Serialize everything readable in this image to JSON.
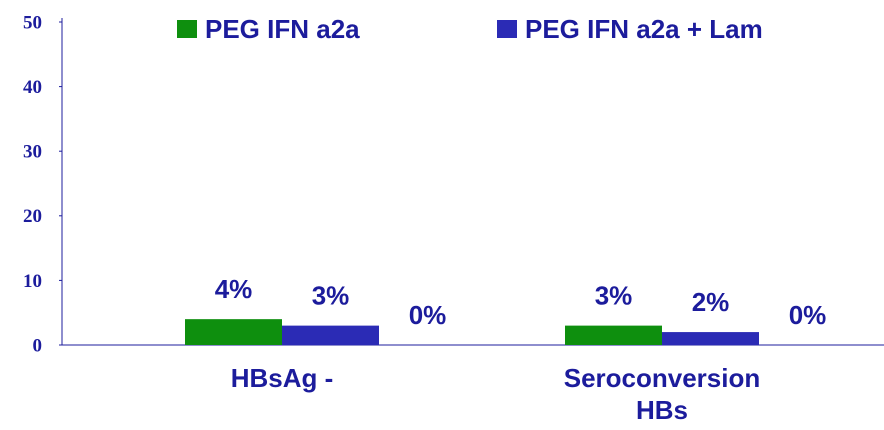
{
  "chart_data": {
    "type": "bar",
    "categories": [
      "HBsAg -",
      "Seroconversion HBs"
    ],
    "series": [
      {
        "name": "PEG IFN a2a",
        "color": "#0e8f0e",
        "values": [
          4,
          3
        ],
        "value_labels": [
          "4%",
          "3%"
        ]
      },
      {
        "name": "PEG IFN a2a + Lam",
        "color": "#2b2bb5",
        "values": [
          3,
          2
        ],
        "value_labels": [
          "3%",
          "2%"
        ]
      },
      {
        "values": [
          0,
          0
        ],
        "value_labels": [
          "0%",
          "0%"
        ]
      }
    ],
    "ylim": [
      0,
      50
    ],
    "yticks": [
      0,
      10,
      20,
      30,
      40,
      50
    ],
    "legend": "top"
  }
}
